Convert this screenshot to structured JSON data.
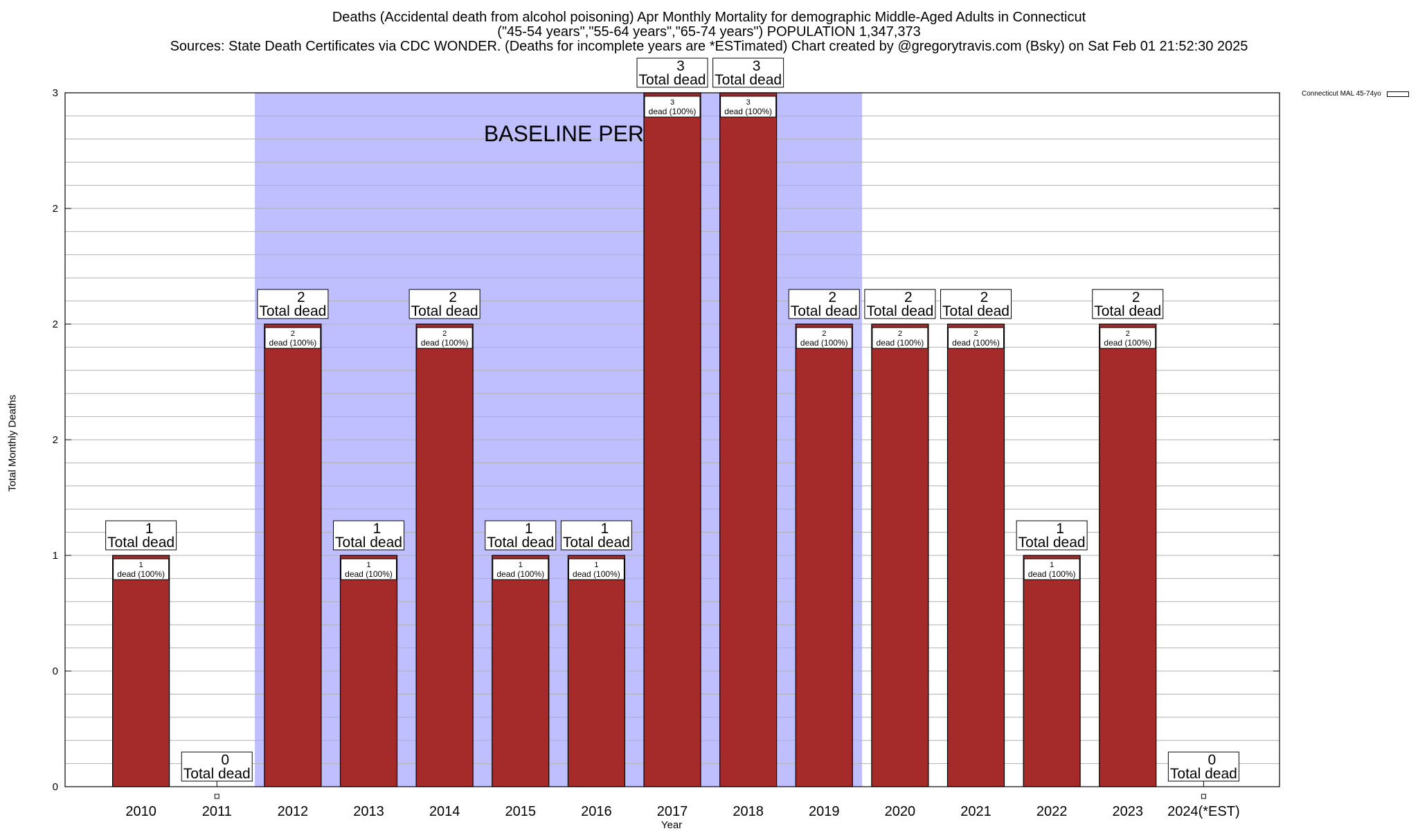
{
  "header": {
    "title_line1": "Deaths (Accidental death from alcohol poisoning) Apr Monthly Mortality for demographic Middle-Aged Adults in Connecticut",
    "title_line2": "(\"45-54 years\",\"55-64 years\",\"65-74 years\") POPULATION 1,347,373",
    "title_line3": "Sources: State Death Certificates via CDC WONDER. (Deaths for incomplete years are *ESTimated)                Chart created by @gregorytravis.com (Bsky) on Sat Feb 01 21:52:30 2025"
  },
  "colors": {
    "bar": "#a52a2a",
    "baseline_shade": "#bfbfff",
    "grid": "#b0b0b0"
  },
  "chart_data": {
    "type": "bar",
    "categories": [
      "2010",
      "2011",
      "2012",
      "2013",
      "2014",
      "2015",
      "2016",
      "2017",
      "2018",
      "2019",
      "2020",
      "2021",
      "2022",
      "2023",
      "2024(*EST)"
    ],
    "series": [
      {
        "name": "Connecticut MAL 45-74yo",
        "values": [
          1,
          0,
          2,
          1,
          2,
          1,
          1,
          3,
          3,
          2,
          2,
          2,
          1,
          2,
          0
        ]
      }
    ],
    "ytick_labels": [
      "0",
      "0",
      "1",
      "2",
      "2",
      "2",
      "3"
    ],
    "ylim": [
      0,
      3
    ],
    "xlabel": "Year",
    "ylabel": "Total Monthly Deaths",
    "total_label_suffix": "Total dead",
    "inner_label_suffix": "dead (100%)",
    "baseline_label": "BASELINE PERIOD",
    "baseline_range": [
      "2012",
      "2019"
    ],
    "legend_position": "top-right",
    "grid": true
  }
}
